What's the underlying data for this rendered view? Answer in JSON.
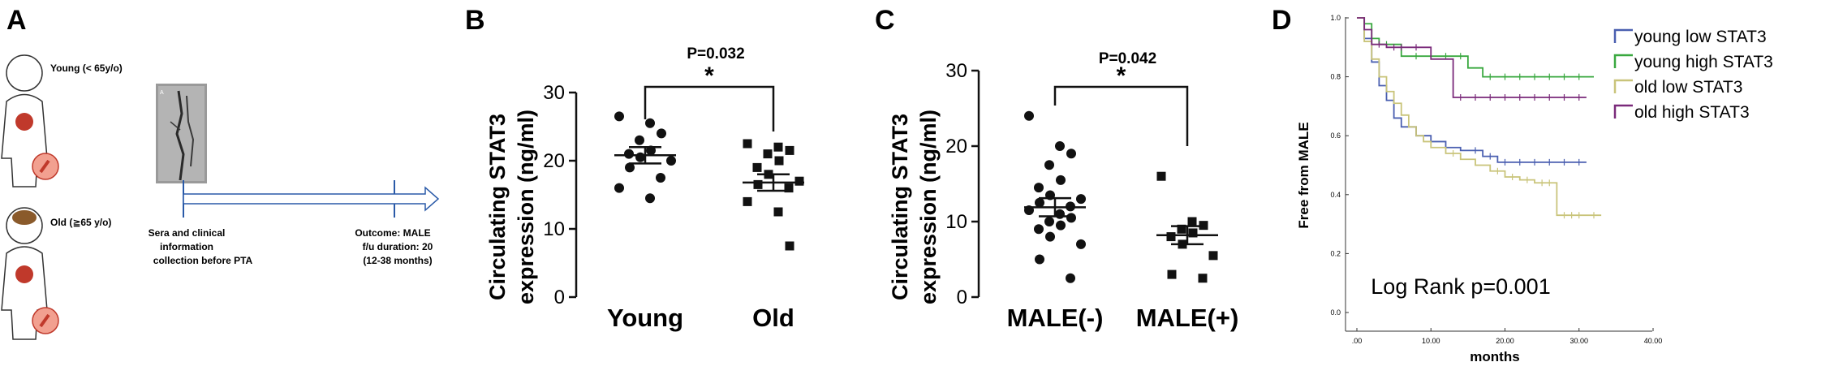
{
  "panel_a": {
    "letter": "A",
    "young_label": "Young (< 65y/o)",
    "old_label": "Old (≧65 y/o)",
    "angio_marker": "A",
    "sera_lines": [
      "Sera and clinical",
      "information",
      "collection before PTA"
    ],
    "outcome_lines": [
      "Outcome: MALE",
      "f/u duration: 20",
      "(12-38 months)"
    ],
    "colors": {
      "arrow": "#2a5aa8",
      "organ": "#c0392b",
      "brain": "#8a5a2b"
    }
  },
  "chart_data": [
    {
      "panel": "B",
      "type": "scatter",
      "ylabel_lines": [
        "Circulating STAT3",
        "expression (ng/ml)"
      ],
      "categories": [
        "Young",
        "Old"
      ],
      "ylim": [
        0,
        30
      ],
      "yticks": [
        0,
        10,
        20,
        30
      ],
      "pvalue": "P=0.032",
      "star": "*",
      "series": [
        {
          "values": [
            26.5,
            25.5,
            24.0,
            23.0,
            21.5,
            21.0,
            20.5,
            20.0,
            19.0,
            17.5,
            16.0,
            14.5
          ],
          "mean": 20.8,
          "sem_low": 19.6,
          "sem_high": 22.0,
          "marker": "circle"
        },
        {
          "values": [
            22.5,
            22.0,
            21.5,
            21.0,
            20.0,
            19.0,
            18.0,
            17.0,
            16.5,
            16.0,
            14.0,
            12.5,
            7.5
          ],
          "mean": 16.8,
          "sem_low": 15.6,
          "sem_high": 18.0,
          "marker": "square"
        }
      ]
    },
    {
      "panel": "C",
      "type": "scatter",
      "ylabel_lines": [
        "Circulating STAT3",
        "expression (ng/ml)"
      ],
      "categories": [
        "MALE(-)",
        "MALE(+)"
      ],
      "ylim": [
        0,
        30
      ],
      "yticks": [
        0,
        10,
        20,
        30
      ],
      "pvalue": "P=0.042",
      "star": "*",
      "series": [
        {
          "values": [
            24.0,
            20.0,
            19.0,
            17.5,
            15.5,
            14.5,
            13.5,
            13.0,
            12.5,
            12.0,
            11.5,
            11.0,
            10.5,
            10.0,
            9.5,
            9.0,
            8.0,
            7.0,
            5.0,
            2.5
          ],
          "mean": 11.9,
          "sem_low": 10.7,
          "sem_high": 13.1,
          "marker": "circle"
        },
        {
          "values": [
            16.0,
            10.0,
            9.5,
            9.0,
            8.5,
            8.0,
            7.0,
            5.5,
            3.0,
            2.5
          ],
          "mean": 8.2,
          "sem_low": 7.0,
          "sem_high": 9.4,
          "marker": "square"
        }
      ]
    },
    {
      "panel": "D",
      "type": "line",
      "step": true,
      "xlabel": "months",
      "ylabel": "Free from MALE",
      "xlim": [
        0,
        40
      ],
      "ylim": [
        0,
        1
      ],
      "xticks": [
        0,
        10,
        20,
        30,
        40
      ],
      "xtick_labels": [
        ".00",
        "10.00",
        "20.00",
        "30.00",
        "40.00"
      ],
      "yticks": [
        0,
        0.2,
        0.4,
        0.6,
        0.8,
        1.0
      ],
      "ytick_labels": [
        "0.0",
        "0.2",
        "0.4",
        "0.6",
        "0.8",
        "1.0"
      ],
      "annotation": "Log Rank p=0.001",
      "legend_position": "top-right",
      "series": [
        {
          "name": "young low STAT3",
          "color": "#4a5fb0",
          "x": [
            0,
            1,
            2,
            3,
            4,
            5,
            6,
            8,
            10,
            12,
            14,
            17,
            19,
            31
          ],
          "y": [
            1.0,
            0.93,
            0.85,
            0.77,
            0.72,
            0.66,
            0.63,
            0.6,
            0.58,
            0.56,
            0.55,
            0.53,
            0.51,
            0.51
          ],
          "censor_x": [
            16,
            18,
            20,
            22,
            24,
            26,
            28,
            30
          ]
        },
        {
          "name": "young high STAT3",
          "color": "#39a83f",
          "x": [
            0,
            1,
            2,
            3,
            6,
            15,
            17,
            32
          ],
          "y": [
            1.0,
            0.98,
            0.93,
            0.91,
            0.87,
            0.83,
            0.8,
            0.8
          ],
          "censor_x": [
            4,
            8,
            10,
            12,
            14,
            18,
            20,
            22,
            24,
            26,
            28,
            30
          ]
        },
        {
          "name": "old low STAT3",
          "color": "#c9c47a",
          "x": [
            0,
            1,
            2,
            3,
            4,
            5,
            6,
            7,
            8,
            9,
            10,
            12,
            14,
            16,
            18,
            20,
            22,
            24,
            27,
            33
          ],
          "y": [
            1.0,
            0.92,
            0.86,
            0.8,
            0.75,
            0.71,
            0.67,
            0.63,
            0.6,
            0.58,
            0.56,
            0.54,
            0.52,
            0.5,
            0.48,
            0.46,
            0.45,
            0.44,
            0.33,
            0.33
          ],
          "censor_x": [
            13,
            19,
            21,
            23,
            25,
            26,
            28,
            29,
            30,
            32
          ]
        },
        {
          "name": "old high STAT3",
          "color": "#7a2a7a",
          "x": [
            0,
            1,
            2,
            4,
            10,
            13,
            31
          ],
          "y": [
            1.0,
            0.96,
            0.91,
            0.9,
            0.86,
            0.73,
            0.73
          ],
          "censor_x": [
            3,
            5,
            6,
            8,
            14,
            16,
            18,
            20,
            22,
            24,
            26,
            28,
            30
          ]
        }
      ]
    }
  ]
}
